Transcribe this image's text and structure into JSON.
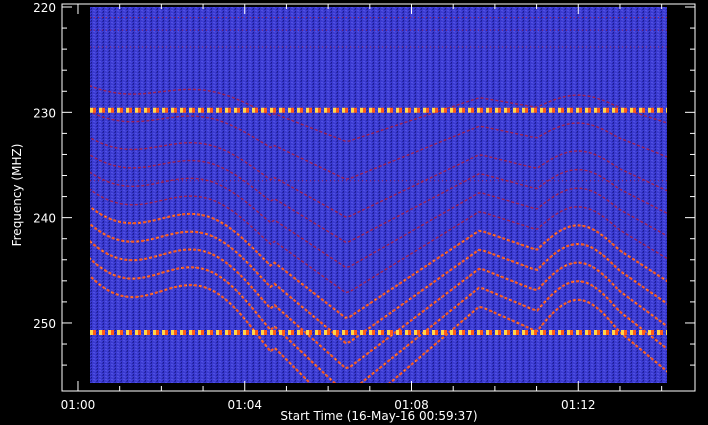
{
  "chart_data": {
    "type": "heatmap",
    "title": "",
    "xlabel": "Start Time (16-May-16 00:59:37)",
    "ylabel": "Frequency (MHZ)",
    "x_ticks": [
      "01:00",
      "01:04",
      "01:08",
      "01:12"
    ],
    "y_ticks": [
      220,
      230,
      240,
      250
    ],
    "ylim": [
      220,
      255.7
    ],
    "y_inverted": true,
    "time_range": [
      "00:59:37",
      "01:14:48"
    ],
    "colormap": [
      "#0b0b6e",
      "#2a2ab8",
      "#4040e0",
      "#7a1a9a",
      "#c01a2a",
      "#ff5a1a",
      "#ffd84a",
      "#ffffff"
    ],
    "background_color": "#000000",
    "axis_color": "#ffffff",
    "constant_bands_mhz": [
      229.8,
      250.9
    ],
    "drifting_emission": {
      "description_free": true,
      "line_offsets_mhz": [
        -16,
        -13,
        -10,
        -8,
        -6,
        -4,
        -2,
        0,
        2,
        4,
        6
      ]
    }
  }
}
